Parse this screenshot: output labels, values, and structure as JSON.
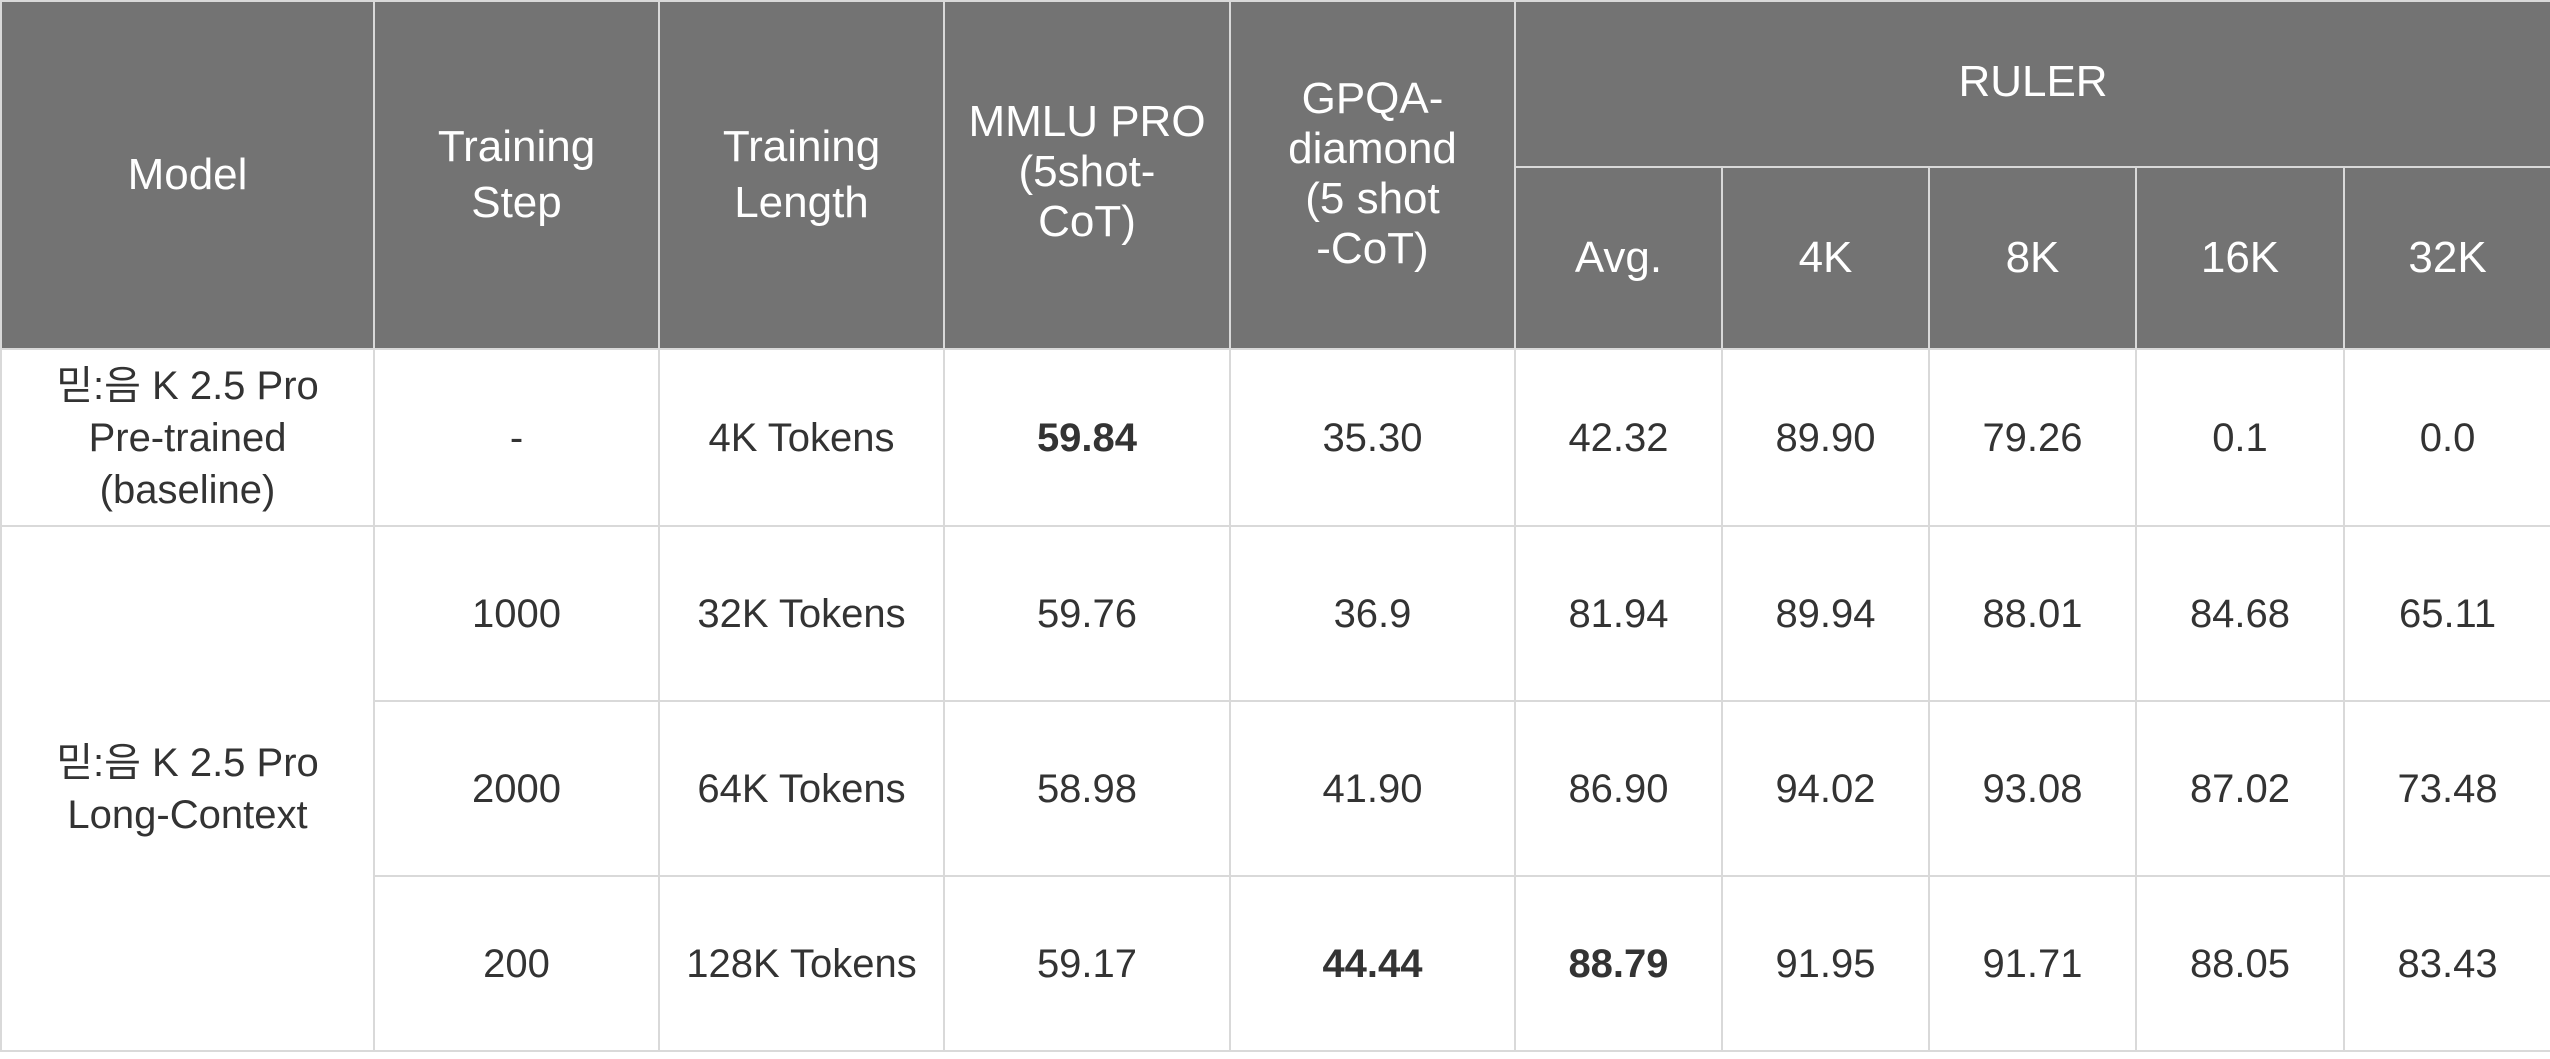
{
  "header": {
    "model": "Model",
    "training_step": [
      "Training",
      "Step"
    ],
    "training_length": [
      "Training",
      "Length"
    ],
    "mmlu_pro": [
      "MMLU PRO",
      "(5shot-",
      "CoT)"
    ],
    "gpqa": [
      "GPQA-",
      "diamond",
      "(5 shot",
      "-CoT)"
    ],
    "ruler": "RULER",
    "ruler_sub": [
      "Avg.",
      "4K",
      "8K",
      "16K",
      "32K"
    ]
  },
  "rows": [
    {
      "model": [
        "믿:음 K 2.5 Pro",
        "Pre-trained",
        "(baseline)"
      ],
      "step": "-",
      "length": "4K Tokens",
      "mmlu": "59.84",
      "gpqa": "35.30",
      "avg": "42.32",
      "r4k": "89.90",
      "r8k": "79.26",
      "r16k": "0.1",
      "r32k": "0.0"
    },
    {
      "model": [
        "믿:음 K 2.5 Pro",
        "Long-Context"
      ],
      "step": "1000",
      "length": "32K Tokens",
      "mmlu": "59.76",
      "gpqa": "36.9",
      "avg": "81.94",
      "r4k": "89.94",
      "r8k": "88.01",
      "r16k": "84.68",
      "r32k": "65.11"
    },
    {
      "step": "2000",
      "length": "64K Tokens",
      "mmlu": "58.98",
      "gpqa": "41.90",
      "avg": "86.90",
      "r4k": "94.02",
      "r8k": "93.08",
      "r16k": "87.02",
      "r32k": "73.48"
    },
    {
      "step": "200",
      "length": "128K Tokens",
      "mmlu": "59.17",
      "gpqa": "44.44",
      "avg": "88.79",
      "r4k": "91.95",
      "r8k": "91.71",
      "r16k": "88.05",
      "r32k": "83.43"
    }
  ]
}
